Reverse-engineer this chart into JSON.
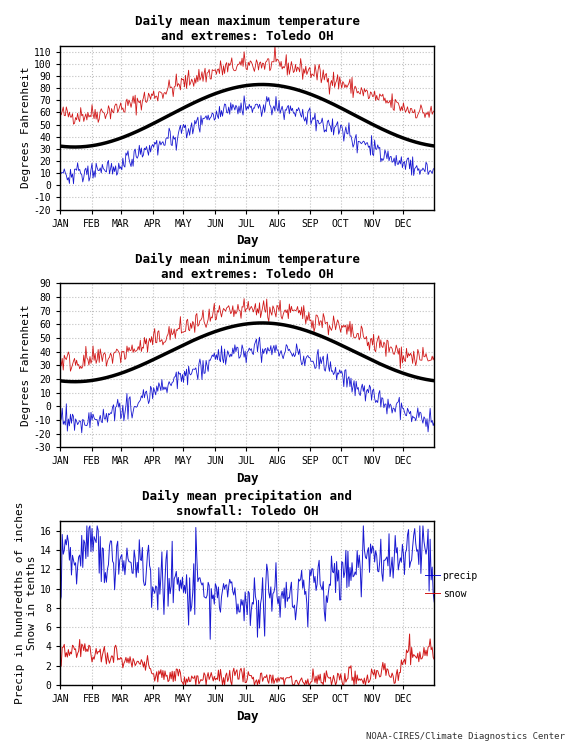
{
  "title1": "Daily mean maximum temperature\nand extremes: Toledo OH",
  "title2": "Daily mean minimum temperature\nand extremes: Toledo OH",
  "title3": "Daily mean precipitation and\nsnowfall: Toledo OH",
  "ylabel1": "Degrees Fahrenheit",
  "ylabel2": "Degrees Fahrenheit",
  "ylabel3": "Precip in hundredths of inches\nSnow in tenths",
  "xlabel": "Day",
  "months": [
    "JAN",
    "FEB",
    "MAR",
    "APR",
    "MAY",
    "JUN",
    "JUL",
    "AUG",
    "SEP",
    "OCT",
    "NOV",
    "DEC"
  ],
  "plot1_ylim": [
    -20,
    115
  ],
  "plot1_yticks": [
    -20,
    -10,
    0,
    10,
    20,
    30,
    40,
    50,
    60,
    70,
    80,
    90,
    100,
    110
  ],
  "plot2_ylim": [
    -30,
    90
  ],
  "plot2_yticks": [
    -30,
    -20,
    -10,
    0,
    10,
    20,
    30,
    40,
    50,
    60,
    70,
    80,
    90
  ],
  "plot3_ylim": [
    0,
    17
  ],
  "plot3_yticks": [
    0,
    2,
    4,
    6,
    8,
    10,
    12,
    14,
    16
  ],
  "line_red": "#cc0000",
  "line_blue": "#0000cc",
  "line_black": "#000000",
  "bg_color": "#ffffff",
  "grid_color": "#bbbbbb",
  "font_color": "#000000",
  "credit": "NOAA-CIRES/Climate Diagnostics Center"
}
